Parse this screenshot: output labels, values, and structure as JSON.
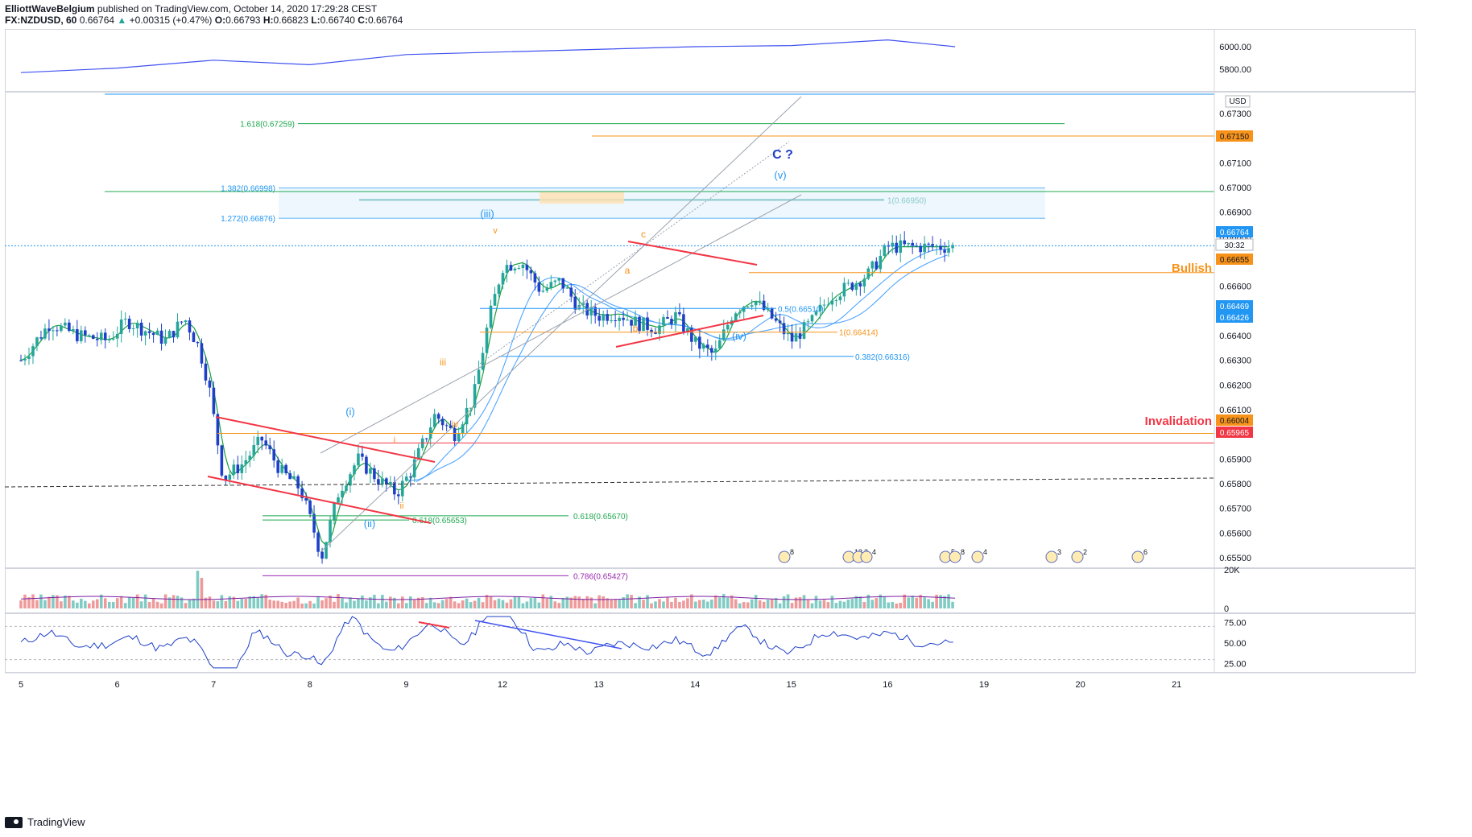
{
  "header": {
    "publisher": "ElliottWaveBelgium",
    "published_text": "published on TradingView.com, October 14, 2020 17:29:28 CEST",
    "symbol": "FX:NZDUSD, 60",
    "last": "0.66764",
    "change": "+0.00315 (+0.47%)",
    "o_label": "O:",
    "o": "0.66793",
    "h_label": "H:",
    "h": "0.66823",
    "l_label": "L:",
    "l": "0.66740",
    "c_label": "C:",
    "c": "0.66764"
  },
  "footer": {
    "brand": "TradingView"
  },
  "colors": {
    "up": "#26a69a",
    "down": "#1e40c8",
    "green": "#1fa84f",
    "orange": "#f7931a",
    "blue": "#2196f3",
    "red": "#f23645",
    "purple": "#9c27b0",
    "grey": "#9ba2ae"
  },
  "chart_data": [
    {
      "type": "line",
      "panel": "top indicator",
      "y_ticks": [
        "6000.00",
        "5800.00"
      ],
      "x": [
        5,
        6,
        7,
        8,
        9,
        12,
        13,
        14,
        14.7
      ],
      "y": [
        5770,
        5810,
        5880,
        5840,
        5930,
        6000,
        6010,
        6060,
        6000
      ]
    },
    {
      "type": "candlestick",
      "panel": "price",
      "currency": "USD",
      "x_labels": [
        "5",
        "6",
        "7",
        "8",
        "9",
        "12",
        "13",
        "14",
        "15",
        "16",
        "19",
        "20",
        "21"
      ],
      "ylim": [
        0.6542,
        0.6728
      ],
      "y_ticks": [
        "0.67300",
        "0.67200",
        "0.67100",
        "0.67000",
        "0.66900",
        "0.66800",
        "0.66700",
        "0.66600",
        "0.66500",
        "0.66400",
        "0.66300",
        "0.66200",
        "0.66100",
        "0.66000",
        "0.65900",
        "0.65800",
        "0.65700",
        "0.65600",
        "0.65500"
      ],
      "price_badges": [
        {
          "text": "0.67150",
          "color": "#f7931a"
        },
        {
          "text": "0.66764",
          "color": "#2196f3"
        },
        {
          "text": "30:32",
          "color": "#ffffff"
        },
        {
          "text": "0.66655",
          "color": "#f7931a"
        },
        {
          "text": "0.66469",
          "color": "#2196f3"
        },
        {
          "text": "0.66426",
          "color": "#2196f3"
        },
        {
          "text": "0.66004",
          "color": "#f7931a"
        },
        {
          "text": "0.65965",
          "color": "#f23645"
        }
      ],
      "close_path_x": [
        5,
        5.3,
        5.6,
        5.9,
        6.1,
        6.3,
        6.5,
        6.7,
        6.85,
        6.95,
        7.1,
        7.3,
        7.5,
        7.7,
        7.9,
        8.05,
        8.12,
        8.3,
        8.5,
        8.7,
        8.9,
        9.05,
        9.3,
        9.5,
        9.7,
        9.85,
        10,
        10.2,
        10.4,
        10.6,
        10.8,
        11,
        11.2,
        11.4,
        11.6,
        11.8,
        12,
        12.2,
        12.4,
        12.6,
        12.8,
        13,
        13.2,
        13.4,
        13.6,
        13.8,
        14
      ],
      "close_path_y": [
        0.663,
        0.6645,
        0.664,
        0.6638,
        0.6646,
        0.6642,
        0.6638,
        0.6647,
        0.6635,
        0.662,
        0.6582,
        0.6588,
        0.6598,
        0.6585,
        0.6578,
        0.656,
        0.655,
        0.6577,
        0.659,
        0.6582,
        0.6576,
        0.6585,
        0.6608,
        0.66,
        0.6615,
        0.6645,
        0.6668,
        0.667,
        0.6658,
        0.6662,
        0.6651,
        0.6648,
        0.6649,
        0.6645,
        0.6643,
        0.6648,
        0.6637,
        0.6632,
        0.665,
        0.6655,
        0.6647,
        0.6638,
        0.6645,
        0.6656,
        0.666,
        0.6665,
        0.6676
      ],
      "levels": [
        {
          "label": "1.618(0.67259)",
          "value": 0.67259,
          "color": "#1fa84f"
        },
        {
          "label": "1.382(0.66998)",
          "value": 0.66998,
          "color": "#2196f3"
        },
        {
          "label": "1(0.66950)",
          "value": 0.6695,
          "color": "#00897b"
        },
        {
          "label": "1.272(0.66876)",
          "value": 0.66876,
          "color": "#2196f3"
        },
        {
          "label": "0.5(0.66510)",
          "value": 0.6651,
          "color": "#2196f3"
        },
        {
          "label": "1(0.66414)",
          "value": 0.66414,
          "color": "#f7931a"
        },
        {
          "label": "0.382(0.66316)",
          "value": 0.66316,
          "color": "#2196f3"
        },
        {
          "label": "0.618(0.65670)",
          "value": 0.6567,
          "color": "#1fa84f"
        },
        {
          "label": "0.618(0.65653)",
          "value": 0.65653,
          "color": "#1fa84f"
        },
        {
          "label": "0.786(0.65427)",
          "value": 0.65427,
          "color": "#9c27b0"
        }
      ],
      "annotations": [
        {
          "text": "C ?",
          "color": "#1e40c8"
        },
        {
          "text": "(v)",
          "color": "#2196f3"
        },
        {
          "text": "(iii)",
          "color": "#2196f3"
        },
        {
          "text": "(iv)",
          "color": "#2196f3"
        },
        {
          "text": "(i)",
          "color": "#2196f3"
        },
        {
          "text": "(ii)",
          "color": "#2196f3"
        },
        {
          "text": "v",
          "color": "#f7931a"
        },
        {
          "text": "iii",
          "color": "#f7931a"
        },
        {
          "text": "iv",
          "color": "#f7931a"
        },
        {
          "text": "i",
          "color": "#f7931a"
        },
        {
          "text": "ii",
          "color": "#f7931a"
        },
        {
          "text": "a",
          "color": "#f7931a"
        },
        {
          "text": "b",
          "color": "#f7931a"
        },
        {
          "text": "c",
          "color": "#f7931a"
        },
        {
          "text": "Bullish",
          "color": "#f7931a"
        },
        {
          "text": "Invalidation",
          "color": "#f23645"
        }
      ],
      "event_badges": [
        "8",
        "13",
        "2",
        "4",
        "5",
        "8",
        "4",
        "3",
        "2",
        "6"
      ]
    },
    {
      "type": "bar",
      "panel": "volume",
      "y_ticks": [
        "20K",
        "0"
      ]
    },
    {
      "type": "line",
      "panel": "RSI",
      "y_ticks": [
        "75.00",
        "50.00",
        "25.00"
      ],
      "ylim": [
        15,
        85
      ]
    }
  ]
}
